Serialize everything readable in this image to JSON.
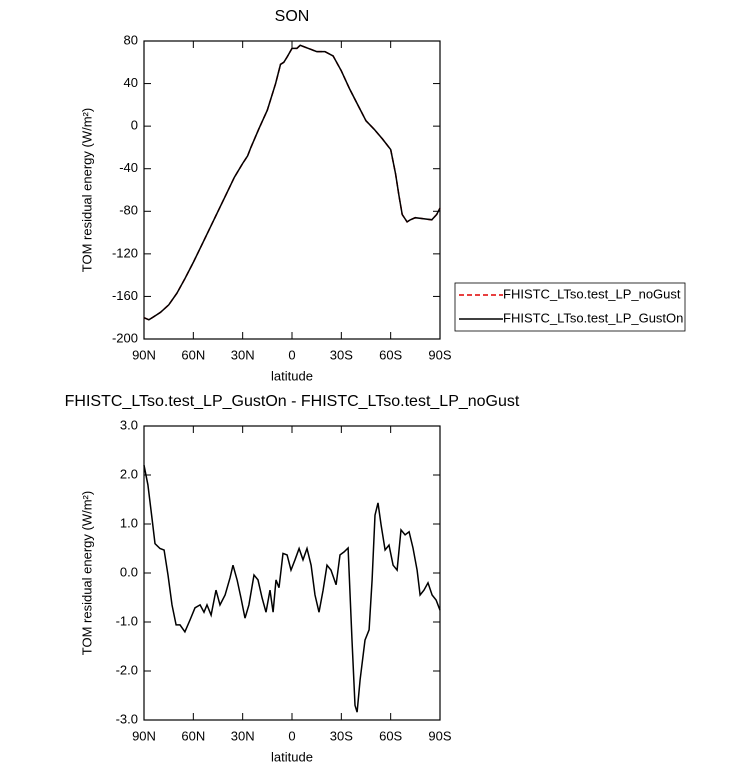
{
  "chart_data": [
    {
      "type": "line",
      "title": "SON",
      "xlabel": "latitude",
      "ylabel": "TOM residual energy (W/m²)",
      "x": [
        90,
        87,
        84,
        80,
        75,
        70,
        65,
        60,
        55,
        50,
        45,
        40,
        35,
        30,
        27,
        25,
        20,
        15,
        10,
        7,
        5,
        3,
        0,
        -3,
        -5,
        -10,
        -15,
        -20,
        -25,
        -30,
        -35,
        -40,
        -45,
        -50,
        -55,
        -60,
        -63,
        -65,
        -67,
        -70,
        -72,
        -75,
        -80,
        -85,
        -88,
        -90
      ],
      "series": [
        {
          "name": "FHISTC_LTso.test_LP_noGust",
          "color": "#e00000",
          "dash": true,
          "values": [
            -180,
            -182,
            -179,
            -175,
            -168,
            -157,
            -143,
            -128,
            -112,
            -96,
            -80,
            -64,
            -48,
            -35,
            -28,
            -20,
            -2,
            15,
            40,
            58,
            60,
            65,
            73,
            73,
            76,
            73,
            70,
            70,
            66,
            52,
            35,
            20,
            5,
            -3,
            -12,
            -22,
            -45,
            -65,
            -83,
            -90,
            -88,
            -86,
            -87,
            -88,
            -83,
            -77
          ]
        },
        {
          "name": "FHISTC_LTso.test_LP_GustOn",
          "color": "#000000",
          "dash": false,
          "values": [
            -180,
            -182,
            -179,
            -175,
            -168,
            -157,
            -143,
            -128,
            -112,
            -96,
            -80,
            -64,
            -48,
            -35,
            -28,
            -20,
            -2,
            15,
            40,
            58,
            60,
            65,
            73,
            73,
            76,
            73,
            70,
            70,
            66,
            52,
            35,
            20,
            5,
            -3,
            -12,
            -22,
            -45,
            -65,
            -83,
            -90,
            -88,
            -86,
            -87,
            -88,
            -83,
            -77
          ]
        }
      ],
      "xlim": [
        90,
        -90
      ],
      "xticks": [
        {
          "value": 90,
          "label": "90N"
        },
        {
          "value": 60,
          "label": "60N"
        },
        {
          "value": 30,
          "label": "30N"
        },
        0,
        {
          "value": -30,
          "label": "30S"
        },
        {
          "value": -60,
          "label": "60S"
        },
        {
          "value": -90,
          "label": "90S"
        }
      ],
      "ylim": [
        -200,
        80
      ],
      "yticks": [
        80,
        40,
        0,
        -40,
        -80,
        -120,
        -160,
        -200
      ],
      "legend": "right"
    },
    {
      "type": "line",
      "title": "FHISTC_LTso.test_LP_GustOn - FHISTC_LTso.test_LP_noGust",
      "xlabel": "latitude",
      "ylabel": "TOM residual energy (W/m²)",
      "x": [
        90,
        87.6,
        85.1,
        83.3,
        80.3,
        77.8,
        75.4,
        73,
        70.5,
        68.1,
        65.1,
        62,
        59,
        55.9,
        53.5,
        51.7,
        49.2,
        46.2,
        43.8,
        40.7,
        37.7,
        35.9,
        33.4,
        31,
        28.6,
        26.2,
        23.1,
        20.7,
        18.2,
        15.8,
        13.4,
        11.5,
        9.7,
        7.9,
        5.5,
        3,
        0.6,
        -1.8,
        -4.3,
        -6.7,
        -9.1,
        -11.6,
        -14,
        -16.4,
        -18.9,
        -21.3,
        -23.7,
        -26.8,
        -29.2,
        -31.7,
        -34.1,
        -36.5,
        -38.3,
        -39.6,
        -41.4,
        -44.4,
        -46.9,
        -48.7,
        -50.5,
        -52.3,
        -54.2,
        -56.6,
        -59,
        -61.5,
        -63.9,
        -66.3,
        -68.8,
        -71.2,
        -73.6,
        -76.1,
        -77.9,
        -80.3,
        -82.7,
        -85.2,
        -87.6,
        -90
      ],
      "values": [
        2.2,
        1.8,
        1.1,
        0.6,
        0.5,
        0.47,
        -0.04,
        -0.65,
        -1.06,
        -1.06,
        -1.2,
        -0.96,
        -0.71,
        -0.65,
        -0.8,
        -0.65,
        -0.86,
        -0.35,
        -0.65,
        -0.45,
        -0.1,
        0.16,
        -0.14,
        -0.51,
        -0.92,
        -0.65,
        -0.04,
        -0.14,
        -0.51,
        -0.8,
        -0.35,
        -0.8,
        -0.14,
        -0.3,
        0.4,
        0.37,
        0.06,
        0.27,
        0.5,
        0.27,
        0.5,
        0.16,
        -0.45,
        -0.8,
        -0.35,
        0.16,
        0.06,
        -0.24,
        0.37,
        0.43,
        0.51,
        -1.37,
        -2.7,
        -2.84,
        -2.18,
        -1.37,
        -1.16,
        -0.14,
        1.18,
        1.43,
        0.98,
        0.47,
        0.57,
        0.16,
        0.06,
        0.88,
        0.78,
        0.84,
        0.51,
        0.06,
        -0.45,
        -0.35,
        -0.2,
        -0.45,
        -0.55,
        -0.76
      ],
      "color": "#000000",
      "xlim": [
        90,
        -90
      ],
      "xticks": [
        {
          "value": 90,
          "label": "90N"
        },
        {
          "value": 60,
          "label": "60N"
        },
        {
          "value": 30,
          "label": "30N"
        },
        0,
        {
          "value": -30,
          "label": "30S"
        },
        {
          "value": -60,
          "label": "60S"
        },
        {
          "value": -90,
          "label": "90S"
        }
      ],
      "ylim": [
        -3,
        3
      ],
      "yticks": [
        {
          "value": 3,
          "label": "3.0"
        },
        {
          "value": 2,
          "label": "2.0"
        },
        {
          "value": 1,
          "label": "1.0"
        },
        {
          "value": 0,
          "label": "0.0"
        },
        {
          "value": -1,
          "label": "-1.0"
        },
        {
          "value": -2,
          "label": "-2.0"
        },
        {
          "value": -3,
          "label": "-3.0"
        }
      ]
    }
  ]
}
